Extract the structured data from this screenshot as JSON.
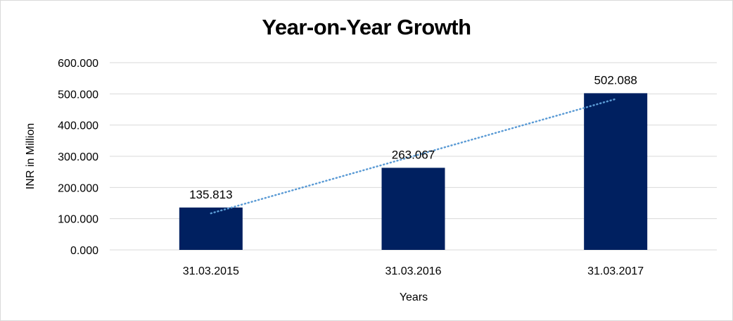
{
  "chart_data": {
    "type": "bar",
    "title": "Year-on-Year Growth",
    "xlabel": "Years",
    "ylabel": "INR in Million",
    "categories": [
      "31.03.2015",
      "31.03.2016",
      "31.03.2017"
    ],
    "values": [
      135.813,
      263.067,
      502.088
    ],
    "data_labels": [
      "135.813",
      "263.067",
      "502.088"
    ],
    "ylim": [
      0,
      600
    ],
    "yticks": [
      0,
      100,
      200,
      300,
      400,
      500,
      600
    ],
    "ytick_labels": [
      "0.000",
      "100.000",
      "200.000",
      "300.000",
      "400.000",
      "500.000",
      "600.000"
    ],
    "grid": true,
    "bar_color": "#002060",
    "trendline": {
      "type": "linear",
      "style": "dotted",
      "color": "#5b9bd5"
    },
    "gridline_color": "#d9d9d9"
  }
}
